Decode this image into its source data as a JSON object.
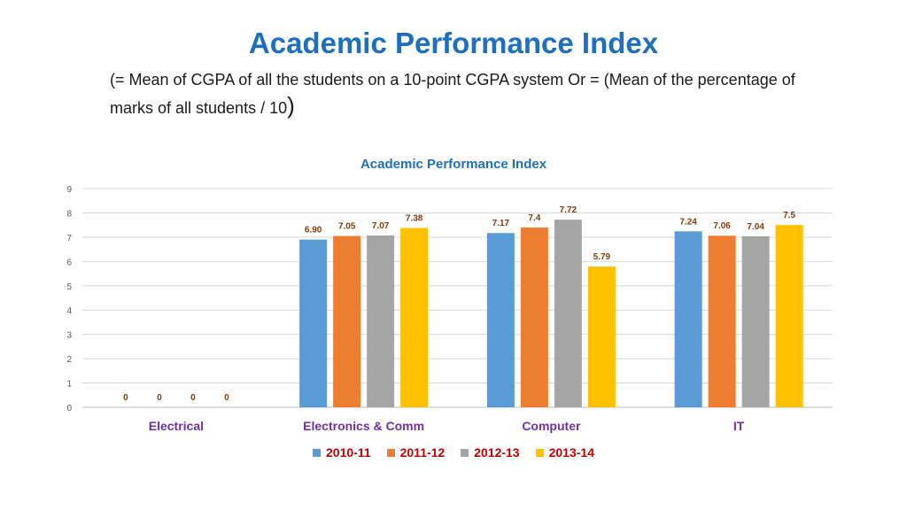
{
  "header": {
    "title": "Academic Performance Index",
    "subtitle_main": "(= Mean of CGPA of all the students on a 10-point CGPA system Or = (Mean of the percentage of marks of all students / 10",
    "subtitle_paren": ")"
  },
  "colors": {
    "title": "#1f6fbf",
    "category_label": "#7030a0",
    "legend_text": "#c00000",
    "data_label": "#843c0c"
  },
  "chart_data": {
    "type": "bar",
    "title": "Academic Performance Index",
    "categories": [
      "Electrical",
      "Electronics & Comm",
      "Computer",
      "IT"
    ],
    "series": [
      {
        "name": "2010-11",
        "color": "#5b9bd5",
        "values": [
          0,
          6.9,
          7.17,
          7.24
        ],
        "labels": [
          "0",
          "6.90",
          "7.17",
          "7.24"
        ]
      },
      {
        "name": "2011-12",
        "color": "#ed7d31",
        "values": [
          0,
          7.05,
          7.4,
          7.06
        ],
        "labels": [
          "0",
          "7.05",
          "7.4",
          "7.06"
        ]
      },
      {
        "name": "2012-13",
        "color": "#a5a5a5",
        "values": [
          0,
          7.07,
          7.72,
          7.04
        ],
        "labels": [
          "0",
          "7.07",
          "7.72",
          "7.04"
        ]
      },
      {
        "name": "2013-14",
        "color": "#ffc000",
        "values": [
          0,
          7.38,
          5.79,
          7.5
        ],
        "labels": [
          "0",
          "7.38",
          "5.79",
          "7.5"
        ]
      }
    ],
    "ylim": [
      0,
      9
    ],
    "yticks": [
      "0",
      "1",
      "2",
      "3",
      "4",
      "5",
      "6",
      "7",
      "8",
      "9"
    ],
    "grid": true,
    "legend_position": "bottom"
  }
}
